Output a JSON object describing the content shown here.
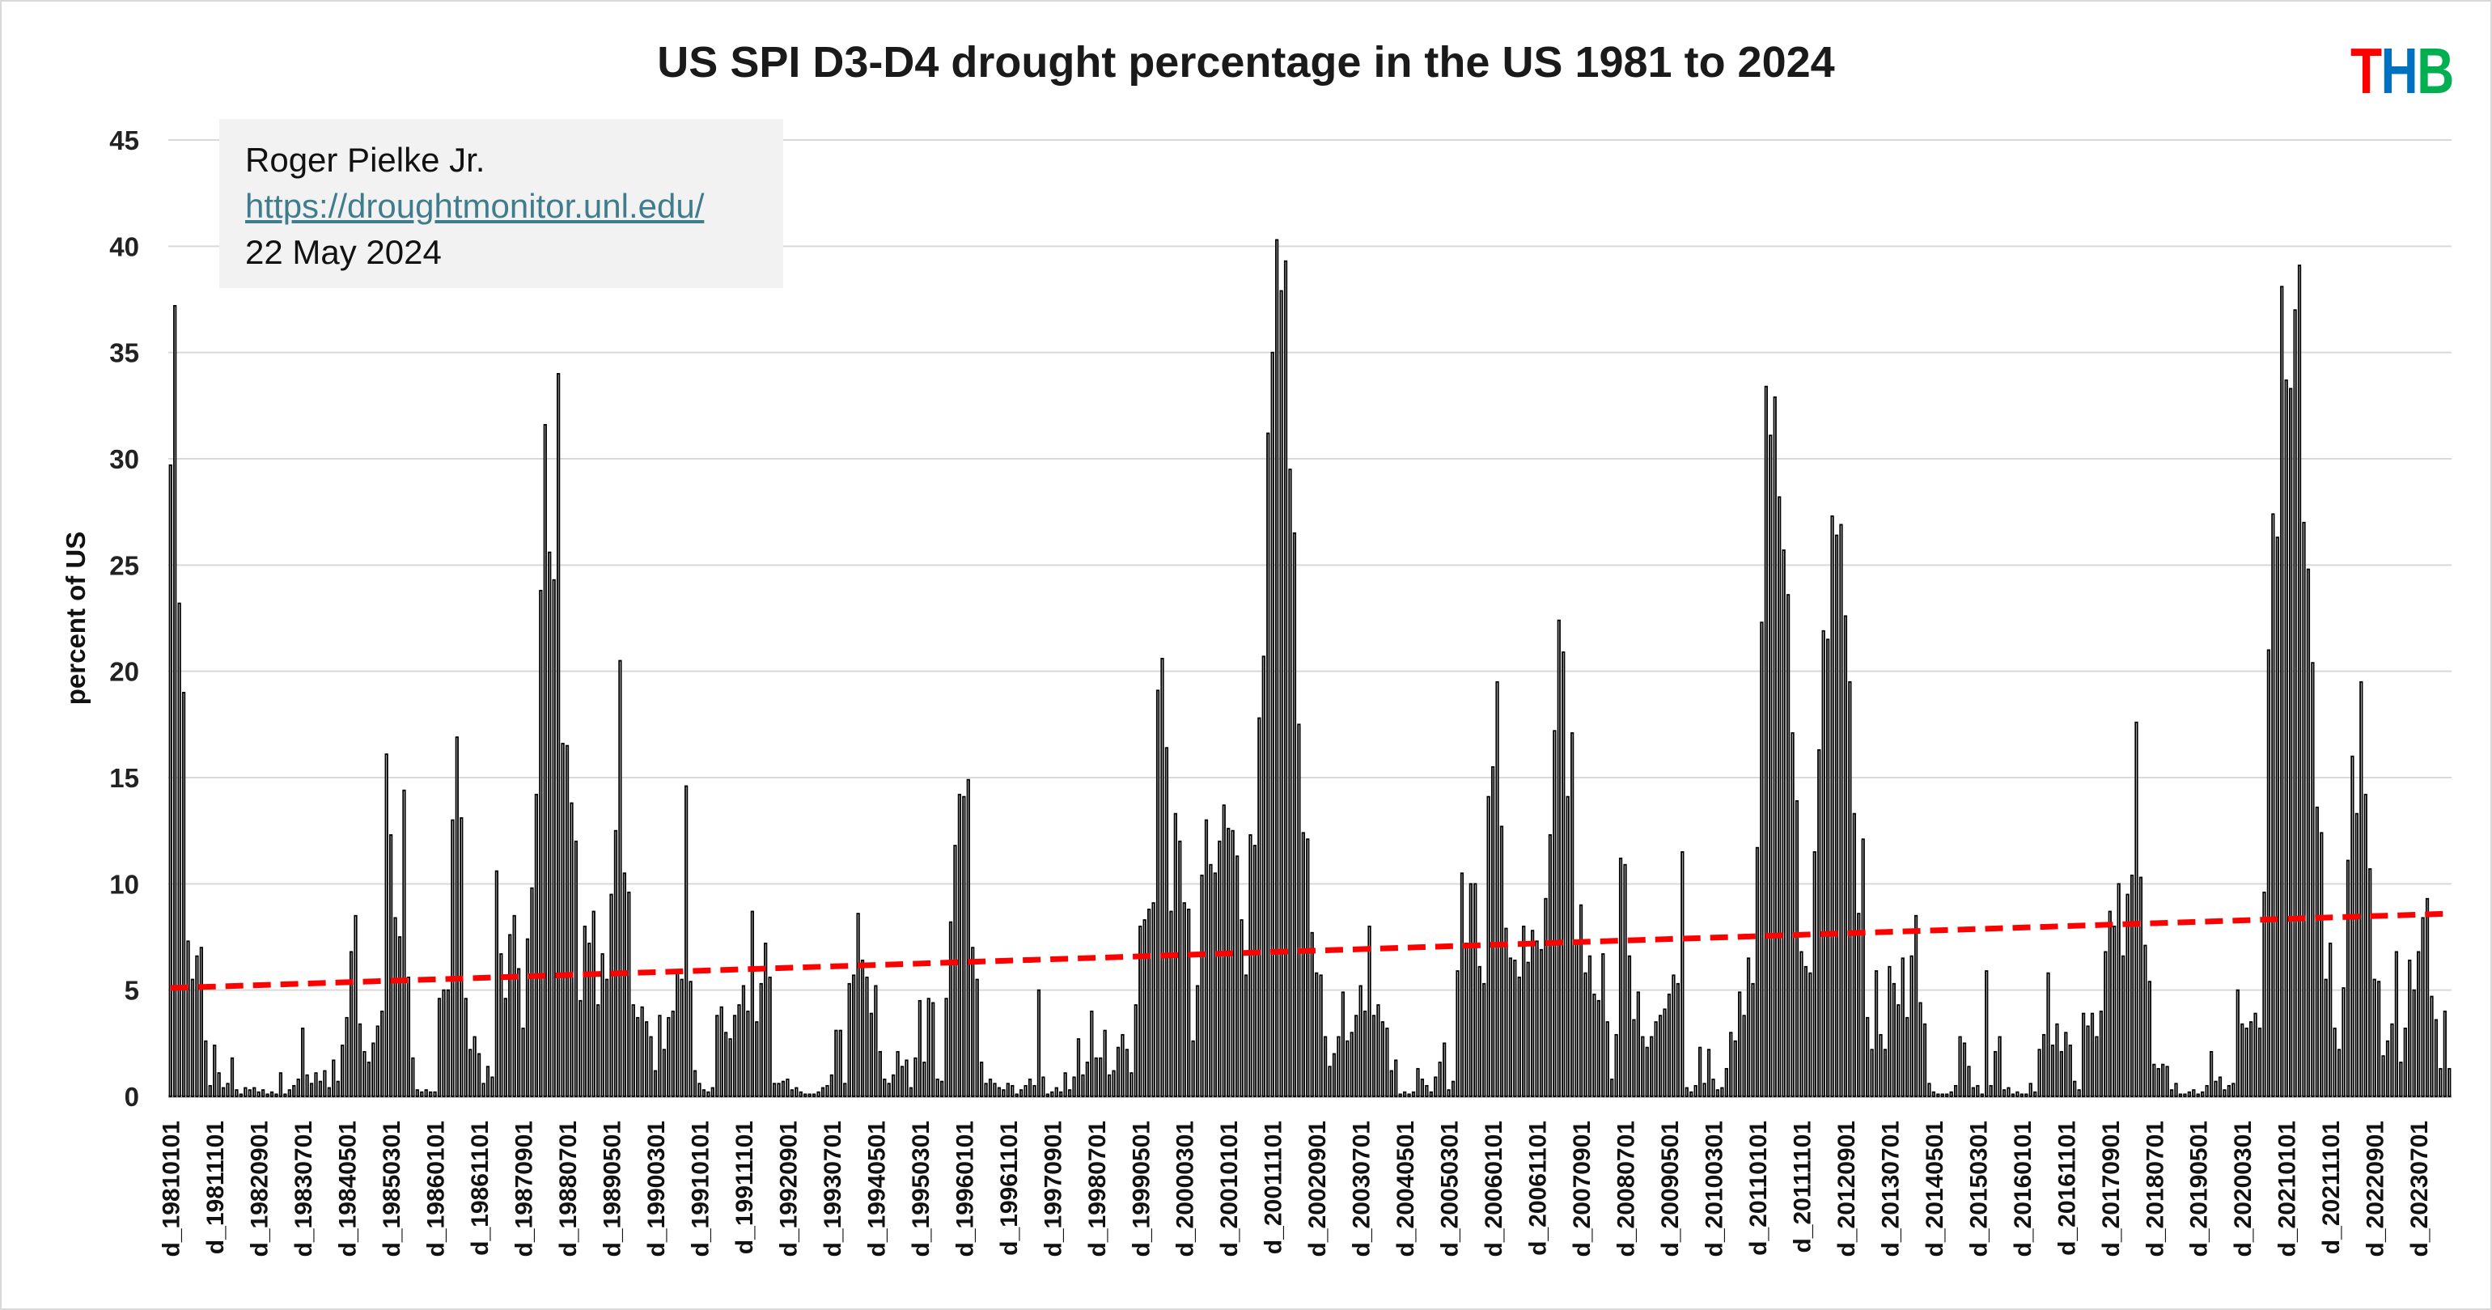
{
  "chart_data": {
    "type": "bar",
    "title": "US SPI D3-D4 drought percentage in the US 1981 to 2024",
    "xlabel": "",
    "ylabel": "percent of US",
    "ylim": [
      0,
      45
    ],
    "yticks": [
      "0",
      "5",
      "10",
      "15",
      "20",
      "25",
      "30",
      "35",
      "40",
      "45"
    ],
    "grid": true,
    "frequency": "monthly",
    "start": "1981-01",
    "tick_every_n_bars": 10,
    "xtick_labels": [
      "d_19810101",
      "d_19811101",
      "d_19820901",
      "d_19830701",
      "d_19840501",
      "d_19850301",
      "d_19860101",
      "d_19861101",
      "d_19870901",
      "d_19880701",
      "d_19890501",
      "d_19900301",
      "d_19910101",
      "d_19911101",
      "d_19920901",
      "d_19930701",
      "d_19940501",
      "d_19950301",
      "d_19960101",
      "d_19961101",
      "d_19970901",
      "d_19980701",
      "d_19990501",
      "d_20000301",
      "d_20010101",
      "d_20011101",
      "d_20020901",
      "d_20030701",
      "d_20040501",
      "d_20050301",
      "d_20060101",
      "d_20061101",
      "d_20070901",
      "d_20080701",
      "d_20090501",
      "d_20100301",
      "d_20110101",
      "d_20111101",
      "d_20120901",
      "d_20130701",
      "d_20140501",
      "d_20150301",
      "d_20160101",
      "d_20161101",
      "d_20170901",
      "d_20180701",
      "d_20190501",
      "d_20200301",
      "d_20210101",
      "d_20211101",
      "d_20220901",
      "d_20230701"
    ],
    "values_by_year": {
      "1981": [
        29.7,
        37.2,
        23.2,
        19.0,
        7.3,
        5.5,
        6.6,
        7.0,
        2.6,
        0.5,
        2.4,
        1.1
      ],
      "1982": [
        0.4,
        0.6,
        1.8,
        0.3,
        0.1,
        0.4,
        0.3,
        0.4,
        0.2,
        0.3,
        0.1,
        0.2
      ],
      "1983": [
        0.1,
        1.1,
        0.1,
        0.3,
        0.5,
        0.8,
        3.2,
        1.0,
        0.6,
        1.1,
        0.7,
        1.2
      ],
      "1984": [
        0.4,
        1.7,
        0.7,
        2.4,
        3.7,
        6.8,
        8.5,
        3.4,
        2.1,
        1.6,
        2.5,
        3.3
      ],
      "1985": [
        4.0,
        16.1,
        12.3,
        8.4,
        7.5,
        14.4,
        5.6,
        1.8,
        0.3,
        0.2,
        0.3,
        0.2
      ],
      "1986": [
        0.2,
        4.6,
        5.0,
        5.0,
        13.0,
        16.9,
        13.1,
        4.6,
        2.2,
        2.8,
        2.0,
        0.6
      ],
      "1987": [
        1.4,
        0.9,
        10.6,
        6.7,
        4.6,
        7.6,
        8.5,
        6.0,
        3.2,
        7.4,
        9.8,
        14.2
      ],
      "1988": [
        23.8,
        31.6,
        25.6,
        24.3,
        34.0,
        16.6,
        16.5,
        13.8,
        12.0,
        4.5,
        8.0,
        7.2
      ],
      "1989": [
        8.7,
        4.3,
        6.7,
        5.5,
        9.5,
        12.5,
        20.5,
        10.5,
        9.6,
        4.3,
        3.7,
        4.2
      ],
      "1990": [
        3.5,
        2.8,
        1.2,
        3.8,
        2.2,
        3.7,
        4.0,
        5.9,
        5.5,
        14.6,
        5.4,
        1.2
      ],
      "1991": [
        0.6,
        0.3,
        0.2,
        0.4,
        3.8,
        4.2,
        3.0,
        2.7,
        3.8,
        4.3,
        5.2,
        4.0
      ],
      "1992": [
        8.7,
        3.5,
        5.3,
        7.2,
        5.6,
        0.6,
        0.6,
        0.7,
        0.8,
        0.3,
        0.4,
        0.2
      ],
      "1993": [
        0.1,
        0.1,
        0.1,
        0.2,
        0.4,
        0.5,
        1.0,
        3.1,
        3.1,
        0.6,
        5.3,
        5.7
      ],
      "1994": [
        8.6,
        6.4,
        5.6,
        3.9,
        5.2,
        2.1,
        0.8,
        0.6,
        1.0,
        2.1,
        1.4,
        1.7
      ],
      "1995": [
        0.4,
        1.8,
        4.5,
        1.6,
        4.6,
        4.4,
        0.8,
        0.7,
        4.6,
        8.2,
        11.8,
        14.2
      ],
      "1996": [
        14.1,
        14.9,
        7.0,
        5.5,
        1.6,
        0.6,
        0.8,
        0.6,
        0.4,
        0.3,
        0.6,
        0.5
      ],
      "1997": [
        0.1,
        0.3,
        0.5,
        0.8,
        0.5,
        5.0,
        0.9,
        0.1,
        0.2,
        0.4,
        0.2,
        1.1
      ],
      "1998": [
        0.3,
        0.9,
        2.7,
        1.0,
        1.6,
        4.0,
        1.8,
        1.8,
        3.1,
        1.0,
        1.2,
        2.3
      ],
      "1999": [
        2.9,
        2.2,
        1.1,
        4.3,
        8.0,
        8.3,
        8.8,
        9.1,
        19.1,
        20.6,
        16.4,
        8.7
      ],
      "2000": [
        13.3,
        12.0,
        9.1,
        8.8,
        2.6,
        5.2,
        10.4,
        13.0,
        10.9,
        10.5,
        12.0,
        13.7
      ],
      "2001": [
        12.6,
        12.5,
        11.3,
        8.3,
        5.7,
        12.3,
        11.8,
        17.8,
        20.7,
        31.2,
        35.0,
        40.3
      ],
      "2002": [
        37.9,
        39.3,
        29.5,
        26.5,
        17.5,
        12.4,
        12.1,
        7.7,
        5.8,
        5.7,
        2.8,
        1.4
      ],
      "2003": [
        2.0,
        2.8,
        4.9,
        2.6,
        3.0,
        3.8,
        5.2,
        4.0,
        8.0,
        3.8,
        4.3,
        3.5
      ],
      "2004": [
        3.2,
        1.2,
        1.7,
        0.1,
        0.2,
        0.1,
        0.2,
        1.3,
        0.8,
        0.5,
        0.2,
        0.9
      ],
      "2005": [
        1.6,
        2.5,
        0.3,
        0.7,
        5.9,
        10.5,
        7.2,
        10.0,
        10.0,
        6.1,
        5.3,
        14.1
      ],
      "2006": [
        15.5,
        19.5,
        12.7,
        7.9,
        6.5,
        6.4,
        5.6,
        8.0,
        6.3,
        7.8,
        7.3,
        6.9
      ],
      "2007": [
        9.3,
        12.3,
        17.2,
        22.4,
        20.9,
        14.1,
        17.1,
        7.2,
        9.0,
        5.8,
        6.6,
        4.8
      ],
      "2008": [
        4.5,
        6.7,
        3.5,
        0.8,
        2.9,
        11.2,
        10.9,
        6.6,
        3.6,
        4.9,
        2.8,
        2.3
      ],
      "2009": [
        2.8,
        3.5,
        3.8,
        4.1,
        4.8,
        5.7,
        5.3,
        11.5,
        0.4,
        0.2,
        0.5,
        2.3
      ],
      "2010": [
        0.6,
        2.2,
        0.8,
        0.3,
        0.4,
        1.3,
        3.0,
        2.6,
        4.9,
        3.8,
        6.5,
        5.3
      ],
      "2011": [
        11.7,
        22.3,
        33.4,
        31.1,
        32.9,
        28.2,
        25.7,
        23.6,
        17.1,
        13.9,
        6.8,
        6.1
      ],
      "2012": [
        5.8,
        11.5,
        16.3,
        21.9,
        21.5,
        27.3,
        26.4,
        26.9,
        22.6,
        19.5,
        13.3,
        8.6
      ],
      "2013": [
        12.1,
        3.7,
        2.2,
        5.9,
        2.9,
        2.2,
        6.1,
        5.3,
        4.3,
        6.5,
        3.7,
        6.6
      ],
      "2014": [
        8.5,
        4.4,
        3.4,
        0.6,
        0.2,
        0.1,
        0.1,
        0.1,
        0.2,
        0.5,
        2.8,
        2.5
      ],
      "2015": [
        1.4,
        0.4,
        0.5,
        0.1,
        5.9,
        0.5,
        2.1,
        2.8,
        0.3,
        0.4,
        0.1,
        0.2
      ],
      "2016": [
        0.1,
        0.1,
        0.6,
        0.2,
        2.2,
        2.9,
        5.8,
        2.4,
        3.4,
        2.1,
        3.0,
        2.4
      ],
      "2017": [
        0.7,
        0.3,
        3.9,
        3.3,
        3.9,
        2.8,
        4.0,
        6.8,
        8.7,
        8.0,
        10.0,
        6.6
      ],
      "2018": [
        9.5,
        10.4,
        17.6,
        10.3,
        7.1,
        5.4,
        1.5,
        1.3,
        1.5,
        1.4,
        0.3,
        0.6
      ],
      "2019": [
        0.1,
        0.1,
        0.2,
        0.3,
        0.1,
        0.2,
        0.5,
        2.1,
        0.7,
        0.9,
        0.3,
        0.5
      ],
      "2020": [
        0.6,
        5.0,
        3.4,
        3.2,
        3.5,
        3.9,
        3.2,
        9.6,
        21.0,
        27.4,
        26.3,
        38.1
      ],
      "2021": [
        33.7,
        33.3,
        37.0,
        39.1,
        27.0,
        24.8,
        20.4,
        13.6,
        12.4,
        5.5,
        7.2,
        3.2
      ],
      "2022": [
        2.2,
        5.1,
        11.1,
        16.0,
        13.3,
        19.5,
        14.2,
        10.7,
        5.5,
        5.4,
        1.9,
        2.6
      ],
      "2023": [
        3.4,
        6.8,
        1.6,
        3.2,
        6.4,
        5.0,
        6.8,
        8.4,
        9.3,
        4.7,
        3.6,
        1.3
      ],
      "2024": [
        4.0,
        1.3
      ]
    },
    "trendline": {
      "type": "linear",
      "start_value": 5.1,
      "end_value": 8.6,
      "color": "#ff0000",
      "style": "dashed"
    },
    "bar_fill": "#ffffff",
    "bar_stroke": "#000000"
  },
  "annotation": {
    "author": "Roger Pielke Jr.",
    "source_link": "https://droughtmonitor.unl.edu/",
    "date": "22 May 2024"
  },
  "logo": {
    "text": "THB",
    "colors": [
      "#ff0000",
      "#0070c0",
      "#00b050"
    ]
  }
}
